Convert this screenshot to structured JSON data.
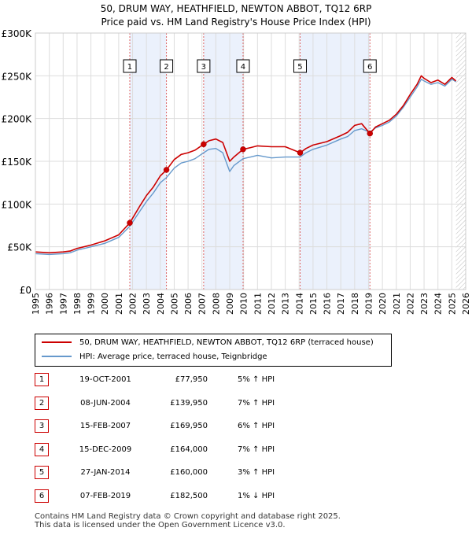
{
  "chart_data": {
    "type": "line",
    "title": "50, DRUM WAY, HEATHFIELD, NEWTON ABBOT, TQ12 6RP",
    "subtitle": "Price paid vs. HM Land Registry's House Price Index (HPI)",
    "xlabel": "",
    "ylabel": "",
    "xlim": [
      1995,
      2026
    ],
    "ylim": [
      0,
      300000
    ],
    "x_ticks": [
      "1995",
      "1996",
      "1997",
      "1998",
      "1999",
      "2000",
      "2001",
      "2002",
      "2003",
      "2004",
      "2005",
      "2006",
      "2007",
      "2008",
      "2009",
      "2010",
      "2011",
      "2012",
      "2013",
      "2014",
      "2015",
      "2016",
      "2017",
      "2018",
      "2019",
      "2020",
      "2021",
      "2022",
      "2023",
      "2024",
      "2025",
      "2026"
    ],
    "y_ticks": [
      {
        "value": 0,
        "label": "£0"
      },
      {
        "value": 50000,
        "label": "£50K"
      },
      {
        "value": 100000,
        "label": "£100K"
      },
      {
        "value": 150000,
        "label": "£150K"
      },
      {
        "value": 200000,
        "label": "£200K"
      },
      {
        "value": 250000,
        "label": "£250K"
      },
      {
        "value": 300000,
        "label": "£300K"
      }
    ],
    "grid": true,
    "series": [
      {
        "name": "50, DRUM WAY, HEATHFIELD, NEWTON ABBOT, TQ12 6RP (terraced house)",
        "color": "#cc0000",
        "x": [
          1995.0,
          1996.0,
          1997.0,
          1997.5,
          1998.0,
          1999.0,
          2000.0,
          2001.0,
          2001.8,
          2002.5,
          2003.0,
          2003.5,
          2004.0,
          2004.45,
          2005.0,
          2005.5,
          2006.0,
          2006.5,
          2007.12,
          2007.5,
          2008.0,
          2008.5,
          2009.0,
          2009.3,
          2009.96,
          2010.5,
          2011.0,
          2012.0,
          2013.0,
          2014.07,
          2014.5,
          2015.0,
          2016.0,
          2017.0,
          2017.5,
          2018.0,
          2018.5,
          2019.1,
          2019.5,
          2020.0,
          2020.5,
          2021.0,
          2021.5,
          2022.0,
          2022.5,
          2022.8,
          2023.0,
          2023.5,
          2024.0,
          2024.5,
          2025.0,
          2025.3
        ],
        "y": [
          44000,
          43000,
          44000,
          45000,
          48000,
          52000,
          57000,
          64000,
          77950,
          97000,
          110000,
          120000,
          133000,
          139950,
          152000,
          158000,
          160000,
          163000,
          169950,
          174000,
          176000,
          172000,
          150000,
          155000,
          164000,
          166000,
          168000,
          167000,
          167000,
          160000,
          165000,
          169000,
          173000,
          180000,
          184000,
          192000,
          194000,
          182500,
          190000,
          194000,
          198000,
          205000,
          215000,
          228000,
          240000,
          250000,
          247000,
          242000,
          245000,
          240000,
          248000,
          244000
        ]
      },
      {
        "name": "HPI: Average price, terraced house, Teignbridge",
        "color": "#6699cc",
        "x": [
          1995.0,
          1996.0,
          1997.0,
          1997.5,
          1998.0,
          1999.0,
          2000.0,
          2001.0,
          2001.8,
          2002.5,
          2003.0,
          2003.5,
          2004.0,
          2004.45,
          2005.0,
          2005.5,
          2006.0,
          2006.5,
          2007.12,
          2007.5,
          2008.0,
          2008.5,
          2009.0,
          2009.3,
          2009.96,
          2010.5,
          2011.0,
          2012.0,
          2013.0,
          2014.07,
          2014.5,
          2015.0,
          2016.0,
          2017.0,
          2017.5,
          2018.0,
          2018.5,
          2019.1,
          2019.5,
          2020.0,
          2020.5,
          2021.0,
          2021.5,
          2022.0,
          2022.5,
          2022.8,
          2023.0,
          2023.5,
          2024.0,
          2024.5,
          2025.0,
          2025.3
        ],
        "y": [
          42000,
          41000,
          42000,
          43000,
          46000,
          50000,
          54000,
          61000,
          74000,
          91000,
          103000,
          113000,
          125000,
          131000,
          142000,
          148000,
          150000,
          153000,
          160000,
          164000,
          165000,
          160000,
          138000,
          145000,
          153000,
          155000,
          157000,
          154000,
          155000,
          155000,
          160000,
          164000,
          169000,
          176000,
          179000,
          186000,
          188000,
          184000,
          189000,
          192000,
          196000,
          203000,
          213000,
          225000,
          237000,
          246000,
          244000,
          240000,
          242000,
          238000,
          246000,
          243000
        ]
      }
    ],
    "sales": [
      {
        "label": "1",
        "x": 2001.8,
        "price": 77950
      },
      {
        "label": "2",
        "x": 2004.44,
        "price": 139950
      },
      {
        "label": "3",
        "x": 2007.12,
        "price": 169950
      },
      {
        "label": "4",
        "x": 2009.96,
        "price": 164000
      },
      {
        "label": "5",
        "x": 2014.07,
        "price": 160000
      },
      {
        "label": "6",
        "x": 2019.1,
        "price": 182500
      }
    ],
    "shaded_periods": [
      [
        2001.8,
        2004.44
      ],
      [
        2007.12,
        2009.96
      ],
      [
        2014.07,
        2019.1
      ]
    ],
    "forecast_start": 2025.3
  },
  "legend": {
    "items": [
      {
        "label": "50, DRUM WAY, HEATHFIELD, NEWTON ABBOT, TQ12 6RP (terraced house)",
        "color": "#cc0000"
      },
      {
        "label": "HPI: Average price, terraced house, Teignbridge",
        "color": "#6699cc"
      }
    ]
  },
  "transactions": [
    {
      "num": "1",
      "date": "19-OCT-2001",
      "price": "£77,950",
      "hpi": "5% ↑ HPI"
    },
    {
      "num": "2",
      "date": "08-JUN-2004",
      "price": "£139,950",
      "hpi": "7% ↑ HPI"
    },
    {
      "num": "3",
      "date": "15-FEB-2007",
      "price": "£169,950",
      "hpi": "6% ↑ HPI"
    },
    {
      "num": "4",
      "date": "15-DEC-2009",
      "price": "£164,000",
      "hpi": "7% ↑ HPI"
    },
    {
      "num": "5",
      "date": "27-JAN-2014",
      "price": "£160,000",
      "hpi": "3% ↑ HPI"
    },
    {
      "num": "6",
      "date": "07-FEB-2019",
      "price": "£182,500",
      "hpi": "1% ↓ HPI"
    }
  ],
  "footer": {
    "line1": "Contains HM Land Registry data © Crown copyright and database right 2025.",
    "line2": "This data is licensed under the Open Government Licence v3.0."
  }
}
